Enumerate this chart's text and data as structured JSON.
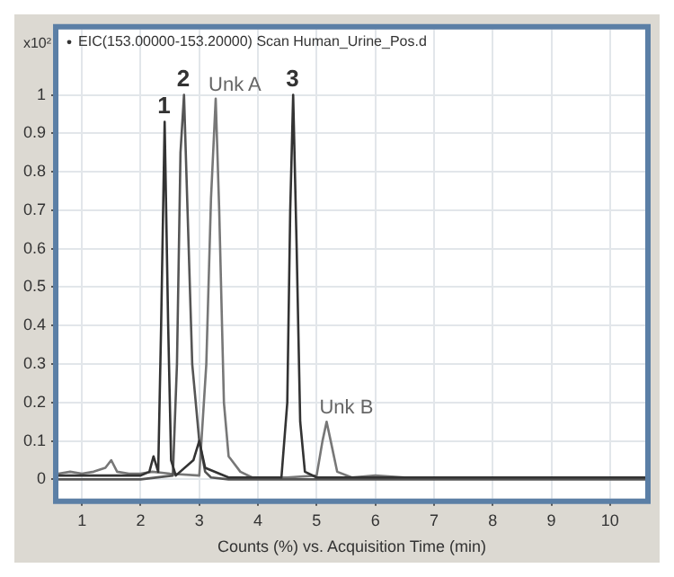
{
  "chart_data": {
    "type": "line",
    "title": "EIC(153.00000-153.20000) Scan Human_Urine_Pos.d",
    "xlabel": "Counts (%) vs. Acquisition Time (min)",
    "ylabel": "x10²",
    "xlim": [
      0.6,
      10.6
    ],
    "xticks": [
      1,
      2,
      3,
      4,
      5,
      6,
      7,
      8,
      9,
      10
    ],
    "ylim": [
      -0.05,
      1.17
    ],
    "yticks": [
      0,
      0.1,
      0.2,
      0.3,
      0.4,
      0.5,
      0.6,
      0.7,
      0.8,
      0.9,
      1
    ],
    "grid": true,
    "legend": false,
    "marker": "none",
    "line_style": "solid",
    "series": [
      {
        "color": "#333333",
        "x": [
          0.6,
          1.0,
          1.5,
          2.0,
          2.15,
          2.22,
          2.3,
          2.35,
          2.41,
          2.47,
          2.52,
          2.6,
          2.9,
          3.0,
          3.1,
          3.5,
          4.4,
          4.5,
          4.55,
          4.6,
          4.66,
          4.72,
          4.8,
          5.0,
          6,
          8,
          10.6
        ],
        "values": [
          0.01,
          0.01,
          0.01,
          0.01,
          0.02,
          0.06,
          0.02,
          0.4,
          0.93,
          0.4,
          0.05,
          0.01,
          0.05,
          0.1,
          0.03,
          0.005,
          0.005,
          0.2,
          0.7,
          1.0,
          0.6,
          0.15,
          0.02,
          0.005,
          0.005,
          0.005,
          0.005
        ]
      },
      {
        "color": "#555555",
        "x": [
          0.6,
          2.0,
          2.55,
          2.62,
          2.68,
          2.74,
          2.8,
          2.88,
          3.0,
          3.1,
          3.2,
          3.5,
          10.6
        ],
        "values": [
          0,
          0,
          0.01,
          0.3,
          0.85,
          1.0,
          0.7,
          0.3,
          0.1,
          0.02,
          0.005,
          0,
          0
        ]
      },
      {
        "color": "#777777",
        "x": [
          0.6,
          0.8,
          1.0,
          1.2,
          1.4,
          1.5,
          1.6,
          1.8,
          2.0,
          2.2,
          2.5,
          3.0,
          3.12,
          3.2,
          3.28,
          3.34,
          3.42,
          3.5,
          3.7,
          3.9,
          4.5,
          5.0,
          5.1,
          5.17,
          5.24,
          5.35,
          5.6,
          6,
          6.5,
          8,
          10.6
        ],
        "values": [
          0.015,
          0.02,
          0.015,
          0.02,
          0.03,
          0.05,
          0.02,
          0.015,
          0.015,
          0.02,
          0.015,
          0.01,
          0.3,
          0.73,
          0.99,
          0.7,
          0.2,
          0.06,
          0.02,
          0.005,
          0.005,
          0.01,
          0.1,
          0.15,
          0.1,
          0.02,
          0.005,
          0.01,
          0.005,
          0.005,
          0.005
        ]
      }
    ],
    "annotations": [
      {
        "text": "1",
        "x": 2.41,
        "y": 0.93
      },
      {
        "text": "2",
        "x": 2.74,
        "y": 1.0
      },
      {
        "text": "Unk A",
        "x": 3.28,
        "y": 0.99
      },
      {
        "text": "3",
        "x": 4.6,
        "y": 1.0
      },
      {
        "text": "Unk B",
        "x": 5.17,
        "y": 0.15
      }
    ]
  }
}
